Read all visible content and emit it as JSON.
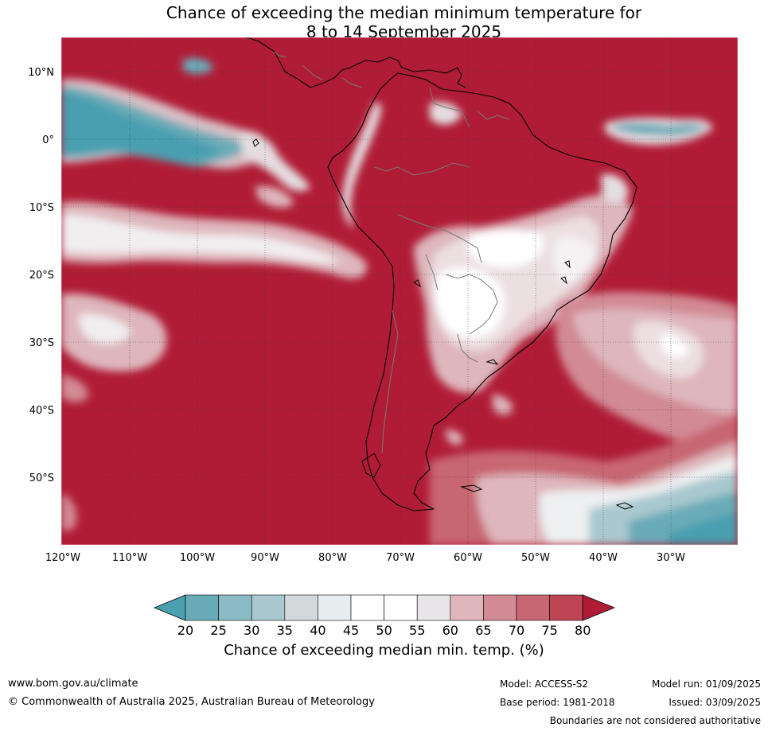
{
  "title": {
    "line1": "Chance of exceeding the median minimum temperature for",
    "line2": "8 to 14 September 2025"
  },
  "lat_labels": [
    "10°N",
    "0°",
    "10°S",
    "20°S",
    "30°S",
    "40°S",
    "50°S"
  ],
  "lon_labels": [
    "120°W",
    "110°W",
    "100°W",
    "90°W",
    "80°W",
    "70°W",
    "60°W",
    "50°W",
    "40°W",
    "30°W"
  ],
  "colorbar": {
    "ticks": [
      "20",
      "25",
      "30",
      "35",
      "40",
      "45",
      "50",
      "55",
      "60",
      "65",
      "70",
      "75",
      "80"
    ],
    "colors": [
      "#4a9fb0",
      "#6aabb8",
      "#8bbcc6",
      "#a9c8cf",
      "#d2d9db",
      "#e8eef0",
      "#ffffff",
      "#ffffff",
      "#e8e6e8",
      "#deb6bc",
      "#d28a94",
      "#c86672",
      "#be4554",
      "#b01c36"
    ],
    "label": "Chance of exceeding median min. temp. (%)"
  },
  "footer": {
    "website": "www.bom.gov.au/climate",
    "copyright": "© Commonwealth of Australia 2025, Australian Bureau of Meteorology",
    "model": "Model: ACCESS-S2",
    "base_period": "Base period: 1981-2018",
    "model_run": "Model run: 01/09/2025",
    "issued": "Issued: 03/09/2025",
    "disclaimer": "Boundaries are not considered authoritative"
  }
}
